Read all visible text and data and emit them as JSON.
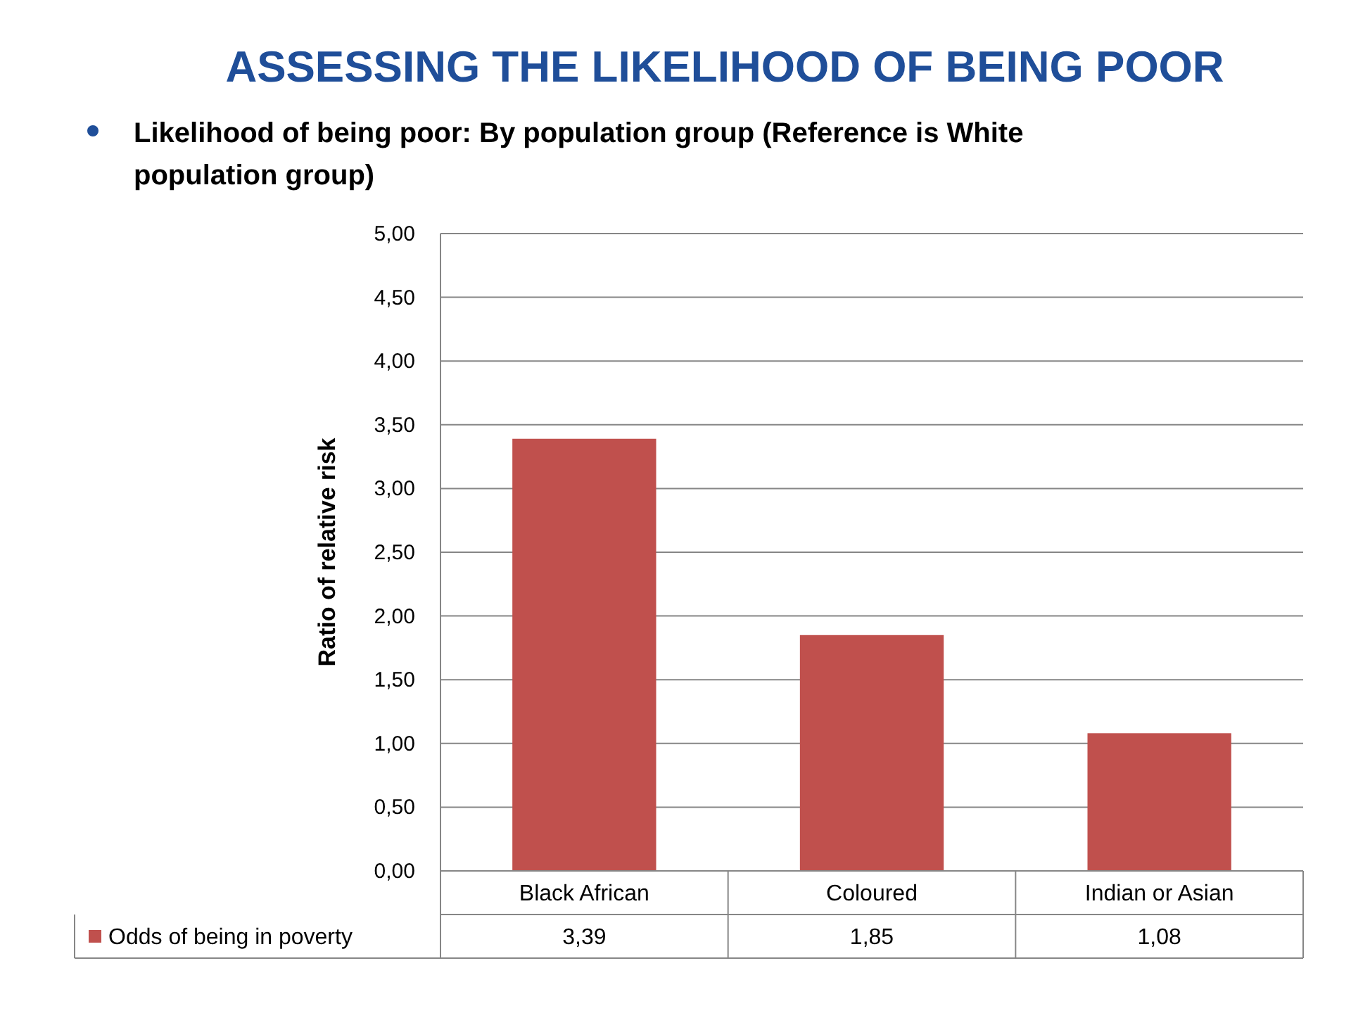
{
  "chart_data": {
    "type": "bar",
    "title": "ASSESSING THE LIKELIHOOD OF BEING POOR",
    "subtitle": "Likelihood of being poor: By population group (Reference is White population group)",
    "ylabel": "Ratio of relative risk",
    "categories": [
      "Black African",
      "Coloured",
      "Indian or Asian"
    ],
    "series": [
      {
        "name": "Odds of being in poverty",
        "color": "#c0504d",
        "values": [
          3.39,
          1.85,
          1.08
        ],
        "value_labels": [
          "3,39",
          "1,85",
          "1,08"
        ]
      }
    ],
    "ylim": [
      0,
      5
    ],
    "yticks": [
      {
        "value": 0,
        "label": "0,00"
      },
      {
        "value": 0.5,
        "label": "0,50"
      },
      {
        "value": 1,
        "label": "1,00"
      },
      {
        "value": 1.5,
        "label": "1,50"
      },
      {
        "value": 2,
        "label": "2,00"
      },
      {
        "value": 2.5,
        "label": "2,50"
      },
      {
        "value": 3,
        "label": "3,00"
      },
      {
        "value": 3.5,
        "label": "3,50"
      },
      {
        "value": 4,
        "label": "4,00"
      },
      {
        "value": 4.5,
        "label": "4,50"
      },
      {
        "value": 5,
        "label": "5,00"
      }
    ],
    "grid": "y",
    "legend": "bottom"
  }
}
